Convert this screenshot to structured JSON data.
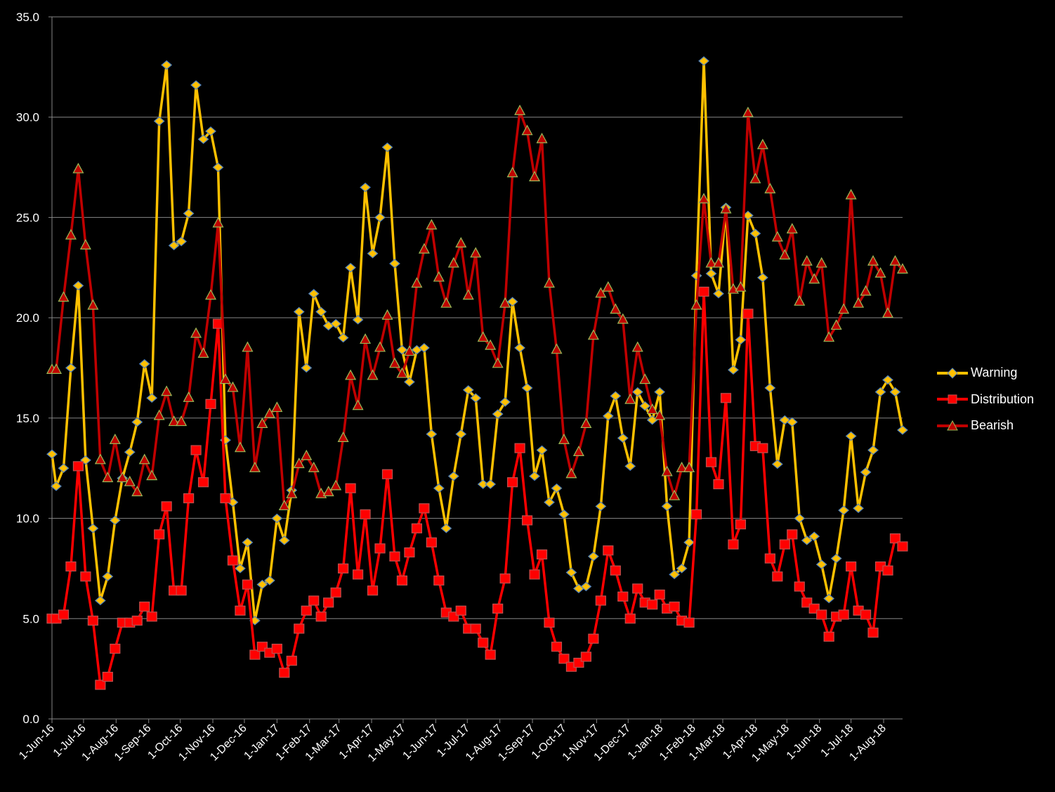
{
  "chart_data": {
    "type": "line",
    "title": "",
    "xlabel": "",
    "ylabel": "",
    "ylim": [
      0,
      35
    ],
    "yticks": [
      "0.0",
      "5.0",
      "10.0",
      "15.0",
      "20.0",
      "25.0",
      "30.0",
      "35.0"
    ],
    "grid": true,
    "legend_position": "right",
    "x_unit": "days since 1-Jun-16",
    "xlim": [
      0,
      809
    ],
    "xticks": [
      {
        "label": "1-Jun-16",
        "day": 0
      },
      {
        "label": "1-Jul-16",
        "day": 30
      },
      {
        "label": "1-Aug-16",
        "day": 61
      },
      {
        "label": "1-Sep-16",
        "day": 92
      },
      {
        "label": "1-Oct-16",
        "day": 122
      },
      {
        "label": "1-Nov-16",
        "day": 153
      },
      {
        "label": "1-Dec-16",
        "day": 183
      },
      {
        "label": "1-Jan-17",
        "day": 214
      },
      {
        "label": "1-Feb-17",
        "day": 245
      },
      {
        "label": "1-Mar-17",
        "day": 273
      },
      {
        "label": "1-Apr-17",
        "day": 304
      },
      {
        "label": "1-May-17",
        "day": 334
      },
      {
        "label": "1-Jun-17",
        "day": 365
      },
      {
        "label": "1-Jul-17",
        "day": 395
      },
      {
        "label": "1-Aug-17",
        "day": 426
      },
      {
        "label": "1-Sep-17",
        "day": 457
      },
      {
        "label": "1-Oct-17",
        "day": 487
      },
      {
        "label": "1-Nov-17",
        "day": 518
      },
      {
        "label": "1-Dec-17",
        "day": 548
      },
      {
        "label": "1-Jan-18",
        "day": 579
      },
      {
        "label": "1-Feb-18",
        "day": 610
      },
      {
        "label": "1-Mar-18",
        "day": 638
      },
      {
        "label": "1-Apr-18",
        "day": 669
      },
      {
        "label": "1-May-18",
        "day": 699
      },
      {
        "label": "1-Jun-18",
        "day": 730
      },
      {
        "label": "1-Jul-18",
        "day": 760
      },
      {
        "label": "1-Aug-18",
        "day": 791
      }
    ],
    "x": [
      0,
      4,
      11,
      18,
      25,
      32,
      39,
      46,
      53,
      60,
      67,
      74,
      81,
      88,
      95,
      102,
      109,
      116,
      123,
      130,
      137,
      144,
      151,
      158,
      165,
      172,
      179,
      186,
      193,
      200,
      207,
      214,
      221,
      228,
      235,
      242,
      249,
      256,
      263,
      270,
      277,
      284,
      291,
      298,
      305,
      312,
      319,
      326,
      333,
      340,
      347,
      354,
      361,
      368,
      375,
      382,
      389,
      396,
      403,
      410,
      417,
      424,
      431,
      438,
      445,
      452,
      459,
      466,
      473,
      480,
      487,
      494,
      501,
      508,
      515,
      522,
      529,
      536,
      543,
      550,
      557,
      564,
      571,
      578,
      585,
      592,
      599,
      606,
      613,
      620,
      627,
      634,
      641,
      648,
      655,
      662,
      669,
      676,
      683,
      690,
      697,
      704,
      711,
      718,
      725,
      732,
      739,
      746,
      753,
      760,
      767,
      774,
      781,
      788,
      795,
      802,
      809
    ],
    "series": [
      {
        "name": "Warning",
        "color": "#FFC000",
        "marker": "diamond",
        "marker_stroke": "#4F81BD",
        "values": [
          13.2,
          11.6,
          12.5,
          17.5,
          21.6,
          12.9,
          9.5,
          5.9,
          7.1,
          9.9,
          12.0,
          13.3,
          14.8,
          17.7,
          16.0,
          29.8,
          32.6,
          23.6,
          23.8,
          25.2,
          31.6,
          28.9,
          29.3,
          27.5,
          13.9,
          10.8,
          7.5,
          8.8,
          4.9,
          6.7,
          6.9,
          10.0,
          8.9,
          11.4,
          20.3,
          17.5,
          21.2,
          20.3,
          19.6,
          19.7,
          19.0,
          22.5,
          19.9,
          26.5,
          23.2,
          25.0,
          28.5,
          22.7,
          18.4,
          16.8,
          18.4,
          18.5,
          14.2,
          11.5,
          9.5,
          12.1,
          14.2,
          16.4,
          16.0,
          11.7,
          11.7,
          15.2,
          15.8,
          20.8,
          18.5,
          16.5,
          12.1,
          13.4,
          10.8,
          11.5,
          10.2,
          7.3,
          6.5,
          6.6,
          8.1,
          10.6,
          15.1,
          16.1,
          14.0,
          12.6,
          16.3,
          15.6,
          14.9,
          16.3,
          10.6,
          7.2,
          7.5,
          8.8,
          22.1,
          32.8,
          22.2,
          21.2,
          25.5,
          17.4,
          18.9,
          25.1,
          24.2,
          22.0,
          16.5,
          12.7,
          14.9,
          14.8,
          10.0,
          8.9,
          9.1,
          7.7,
          6.0,
          8.0,
          10.4,
          14.1,
          10.5,
          12.3,
          13.4,
          16.3,
          16.9,
          16.3,
          14.4
        ]
      },
      {
        "name": "Distribution",
        "color": "#FF0000",
        "marker": "square",
        "marker_stroke": "#C0504D",
        "values": [
          5.0,
          5.0,
          5.2,
          7.6,
          12.6,
          7.1,
          4.9,
          1.7,
          2.1,
          3.5,
          4.8,
          4.8,
          4.9,
          5.6,
          5.1,
          9.2,
          10.6,
          6.4,
          6.4,
          11.0,
          13.4,
          11.8,
          15.7,
          19.7,
          11.0,
          7.9,
          5.4,
          6.7,
          3.2,
          3.6,
          3.3,
          3.5,
          2.3,
          2.9,
          4.5,
          5.4,
          5.9,
          5.1,
          5.8,
          6.3,
          7.5,
          11.5,
          7.2,
          10.2,
          6.4,
          8.5,
          12.2,
          8.1,
          6.9,
          8.3,
          9.5,
          10.5,
          8.8,
          6.9,
          5.3,
          5.1,
          5.4,
          4.5,
          4.5,
          3.8,
          3.2,
          5.5,
          7.0,
          11.8,
          13.5,
          9.9,
          7.2,
          8.2,
          4.8,
          3.6,
          3.0,
          2.6,
          2.8,
          3.1,
          4.0,
          5.9,
          8.4,
          7.4,
          6.1,
          5.0,
          6.5,
          5.8,
          5.7,
          6.2,
          5.5,
          5.6,
          4.9,
          4.8,
          10.2,
          21.3,
          12.8,
          11.7,
          16.0,
          8.7,
          9.7,
          20.2,
          13.6,
          13.5,
          8.0,
          7.1,
          8.7,
          9.2,
          6.6,
          5.8,
          5.5,
          5.2,
          4.1,
          5.1,
          5.2,
          7.6,
          5.4,
          5.2,
          4.3,
          7.6,
          7.4,
          9.0,
          8.6
        ]
      },
      {
        "name": "Bearish",
        "color": "#C00000",
        "marker": "triangle",
        "marker_stroke": "#9BBB59",
        "values": [
          17.4,
          17.4,
          21.0,
          24.1,
          27.4,
          23.6,
          20.6,
          12.9,
          12.0,
          13.9,
          12.0,
          11.8,
          11.3,
          12.9,
          12.1,
          15.1,
          16.3,
          14.8,
          14.8,
          16.0,
          19.2,
          18.2,
          21.1,
          24.7,
          16.9,
          16.5,
          13.5,
          18.5,
          12.5,
          14.7,
          15.2,
          15.5,
          10.6,
          11.2,
          12.7,
          13.1,
          12.5,
          11.2,
          11.3,
          11.6,
          14.0,
          17.1,
          15.6,
          18.9,
          17.1,
          18.5,
          20.1,
          17.7,
          17.2,
          18.3,
          21.7,
          23.4,
          24.6,
          22.0,
          20.7,
          22.7,
          23.7,
          21.1,
          23.2,
          19.0,
          18.6,
          17.7,
          20.7,
          27.2,
          30.3,
          29.3,
          27.0,
          28.9,
          21.7,
          18.4,
          13.9,
          12.2,
          13.3,
          14.7,
          19.1,
          21.2,
          21.5,
          20.4,
          19.9,
          15.9,
          18.5,
          16.9,
          15.4,
          15.1,
          12.3,
          11.1,
          12.5,
          12.5,
          20.6,
          25.9,
          22.7,
          22.7,
          25.4,
          21.4,
          21.5,
          30.2,
          26.9,
          28.6,
          26.4,
          24.0,
          23.1,
          24.4,
          20.8,
          22.8,
          21.9,
          22.7,
          19.0,
          19.6,
          20.4,
          26.1,
          20.7,
          21.3,
          22.8,
          22.2,
          20.2,
          22.8,
          22.4
        ]
      }
    ]
  }
}
